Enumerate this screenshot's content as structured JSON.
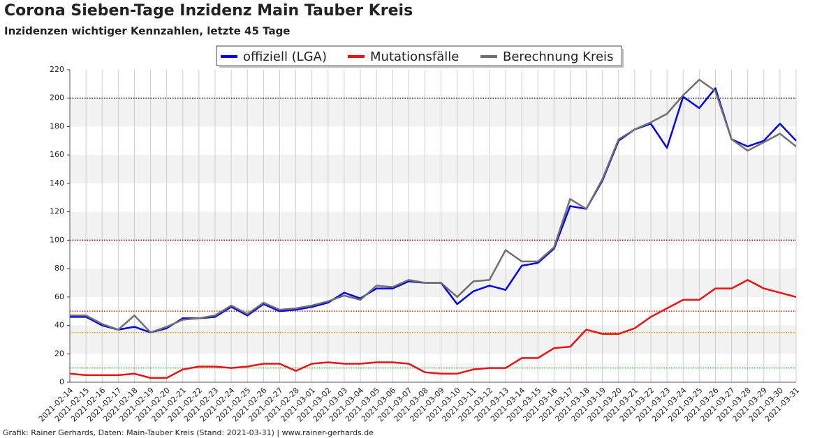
{
  "chart_data": {
    "type": "line",
    "title": "Corona Sieben-Tage Inzidenz Main Tauber Kreis",
    "subtitle": "Inzidenzen wichtiger Kennzahlen, letzte 45 Tage",
    "footer": "Grafik: Rainer Gerhards, Daten: Main-Tauber Kreis (Stand: 2021-03-31) | www.rainer-gerhards.de",
    "categories": [
      "2021-02-14",
      "2021-02-15",
      "2021-02-16",
      "2021-02-17",
      "2021-02-18",
      "2021-02-19",
      "2021-02-20",
      "2021-02-21",
      "2021-02-22",
      "2021-02-23",
      "2021-02-24",
      "2021-02-25",
      "2021-02-26",
      "2021-02-27",
      "2021-02-28",
      "2021-03-01",
      "2021-03-02",
      "2021-03-03",
      "2021-03-04",
      "2021-03-05",
      "2021-03-06",
      "2021-03-07",
      "2021-03-08",
      "2021-03-09",
      "2021-03-10",
      "2021-03-11",
      "2021-03-12",
      "2021-03-13",
      "2021-03-14",
      "2021-03-15",
      "2021-03-16",
      "2021-03-17",
      "2021-03-18",
      "2021-03-19",
      "2021-03-20",
      "2021-03-21",
      "2021-03-22",
      "2021-03-23",
      "2021-03-24",
      "2021-03-25",
      "2021-03-26",
      "2021-03-27",
      "2021-03-28",
      "2021-03-29",
      "2021-03-30",
      "2021-03-31"
    ],
    "series": [
      {
        "name": "offiziell (LGA)",
        "color": "#0000ee",
        "values": [
          46,
          46,
          40,
          37,
          39,
          35,
          38,
          45,
          45,
          46,
          53,
          47,
          55,
          50,
          51,
          53,
          56,
          63,
          59,
          66,
          66,
          71,
          70,
          70,
          55,
          64,
          68,
          65,
          82,
          84,
          94,
          124,
          122,
          142,
          170,
          178,
          182,
          165,
          201,
          193,
          207,
          171,
          166,
          170,
          182,
          170
        ]
      },
      {
        "name": "Mutationsfälle",
        "color": "#ee1111",
        "values": [
          6,
          5,
          5,
          5,
          6,
          3,
          3,
          9,
          11,
          11,
          10,
          11,
          13,
          13,
          8,
          13,
          14,
          13,
          13,
          14,
          14,
          13,
          7,
          6,
          6,
          9,
          10,
          10,
          17,
          17,
          24,
          25,
          37,
          34,
          34,
          38,
          46,
          52,
          58,
          58,
          66,
          66,
          72,
          66,
          63,
          60
        ]
      },
      {
        "name": "Berechnung Kreis",
        "color": "#707070",
        "values": [
          47,
          47,
          41,
          37,
          47,
          35,
          39,
          44,
          45,
          47,
          54,
          48,
          56,
          51,
          52,
          54,
          57,
          61,
          58,
          68,
          67,
          72,
          70,
          70,
          60,
          71,
          72,
          93,
          85,
          85,
          95,
          129,
          122,
          143,
          171,
          178,
          183,
          189,
          202,
          213,
          205,
          171,
          163,
          169,
          175,
          166
        ]
      }
    ],
    "reference_lines": [
      {
        "value": 200,
        "color": "#000000"
      },
      {
        "value": 100,
        "color": "#aa0000"
      },
      {
        "value": 50,
        "color": "#dd2222"
      },
      {
        "value": 35,
        "color": "#ee9900"
      },
      {
        "value": 10,
        "color": "#22bb22"
      }
    ],
    "ylim": [
      0,
      220
    ],
    "yticks": [
      0,
      20,
      40,
      60,
      80,
      100,
      120,
      140,
      160,
      180,
      200,
      220
    ],
    "grid": true,
    "legend": "top"
  }
}
